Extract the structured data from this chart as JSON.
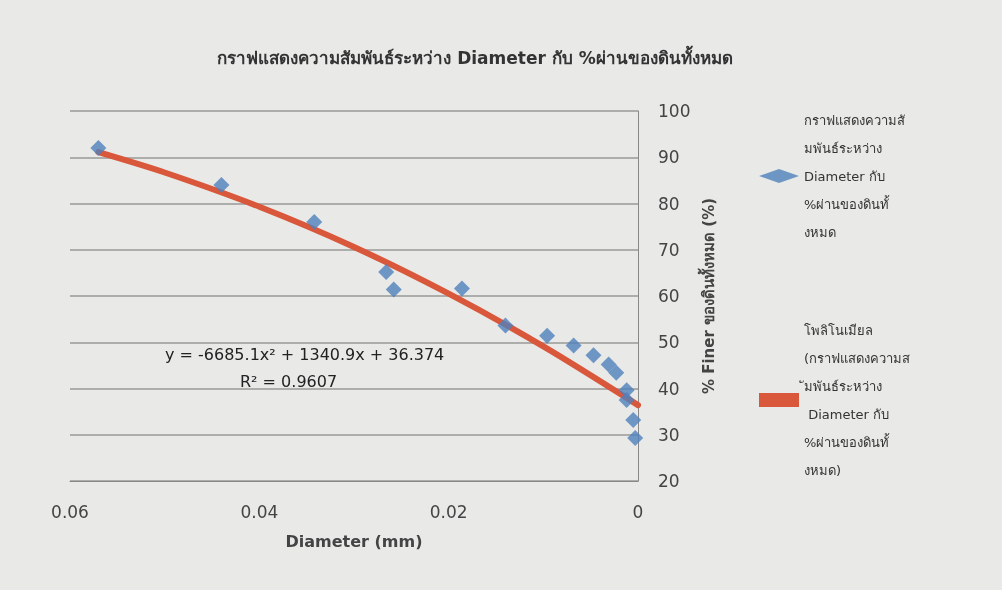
{
  "chart_data": {
    "type": "scatter",
    "title": "กราฟแสดงความสัมพันธ์ระหว่าง Diameter กับ %ผ่านของดินทั้งหมด",
    "xlabel": "Diameter (mm)",
    "ylabel": "% Finer ของดินทั้งหมด (%)",
    "xlim": [
      0.06,
      0
    ],
    "xticks": [
      0.06,
      0.04,
      0.02,
      0
    ],
    "ylim": [
      20,
      100
    ],
    "yticks": [
      20,
      30,
      40,
      50,
      60,
      70,
      80,
      90,
      100
    ],
    "grid": "y",
    "legend": "right",
    "annotations": [
      "y = -6685.1x² + 1340.9x + 36.374",
      "R² = 0.9607"
    ],
    "series": [
      {
        "name": "กราฟแสดงความสัมพันธ์ระหว่าง Diameter กับ %ผ่านของดินทั้งหมด",
        "marker": "diamond",
        "color": "#4f81bd",
        "x": [
          0.057,
          0.044,
          0.0342,
          0.0266,
          0.0258,
          0.0186,
          0.014,
          0.0096,
          0.0068,
          0.0047,
          0.0031,
          0.0023,
          0.0012,
          0.0012,
          0.0005,
          0.0003
        ],
        "values": [
          92,
          84,
          76,
          65.2,
          61.4,
          61.6,
          53.6,
          51.4,
          49.3,
          47.2,
          45.2,
          43.4,
          39.6,
          37.5,
          33.2,
          29.3
        ]
      },
      {
        "name": "โพลิโนเมียล (กราฟแสดงความสัมพันธ์ระหว่าง Diameter กับ %ผ่านของดินทั้งหมด)",
        "type": "line",
        "marker": "none",
        "line_style": "solid",
        "color": "#d9573b",
        "x": [
          0.057,
          0.05,
          0.04,
          0.03,
          0.02,
          0.01,
          0
        ],
        "values": [
          91.1,
          86.7,
          79.3,
          70.6,
          60.5,
          49.1,
          36.4
        ]
      }
    ]
  }
}
